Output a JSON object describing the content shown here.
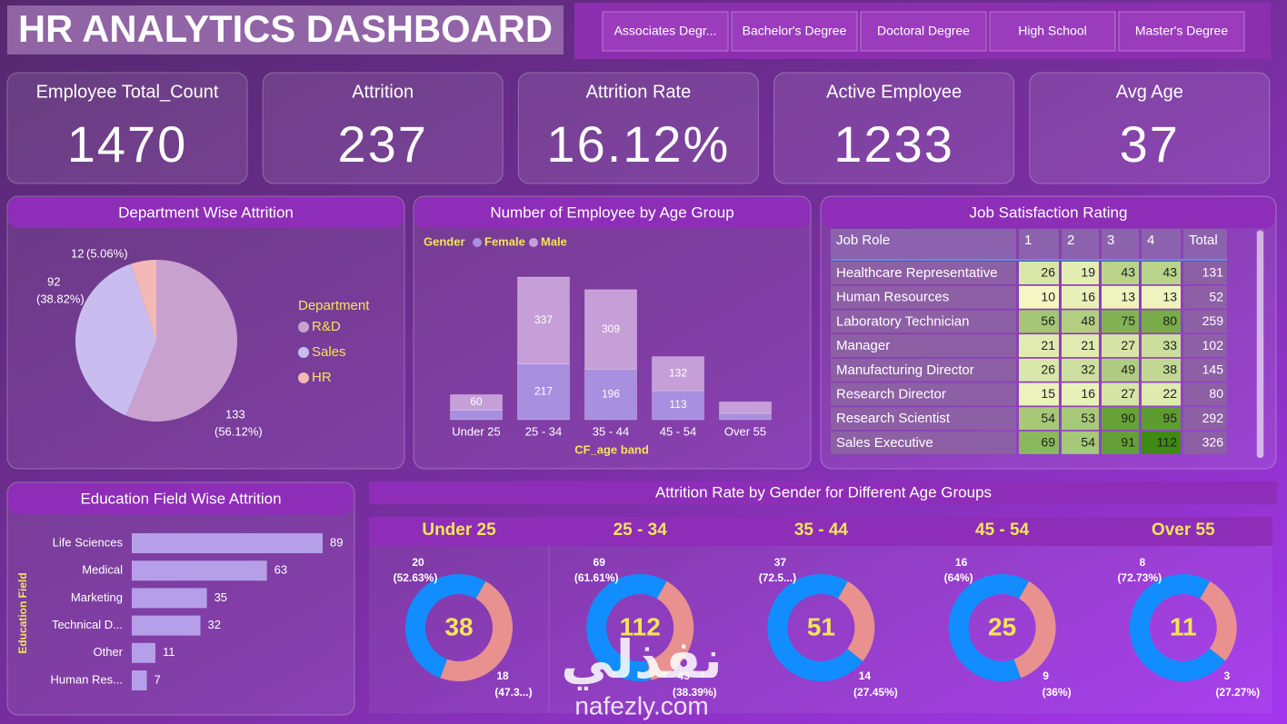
{
  "header": {
    "title": "HR ANALYTICS DASHBOARD",
    "filters": [
      "Associates Degr...",
      "Bachelor's Degree",
      "Doctoral Degree",
      "High School",
      "Master's Degree"
    ]
  },
  "kpis": [
    {
      "label": "Employee Total_Count",
      "value": 1470
    },
    {
      "label": "Attrition",
      "value": 237
    },
    {
      "label": "Attrition Rate",
      "value": 16.12,
      "value_label": "16.12%"
    },
    {
      "label": "Active Employee",
      "value": 1233
    },
    {
      "label": "Avg Age",
      "value": 37
    }
  ],
  "chart_data": [
    {
      "type": "pie",
      "title": "Department Wise Attrition",
      "legend_title": "Department",
      "legend": "right",
      "categories": [
        "R&D",
        "Sales",
        "HR"
      ],
      "values": [
        133,
        92,
        12
      ],
      "percent_labels": [
        "(56.12%)",
        "(38.82%)",
        "(5.06%)"
      ],
      "colors": [
        "#c9a1cf",
        "#c9bdf0",
        "#f2b9b6"
      ]
    },
    {
      "type": "stacked_bar",
      "title": "Number of Employee by Age Group",
      "legend_title": "Gender",
      "x_label": "CF_age band",
      "categories": [
        "Under 25",
        "25 - 34",
        "35 - 44",
        "45 - 54",
        "Over 55"
      ],
      "series": [
        {
          "name": "Female",
          "color": "#a98fe0",
          "values": [
            37,
            217,
            196,
            113,
            25
          ]
        },
        {
          "name": "Male",
          "color": "#c79fd8",
          "values": [
            60,
            337,
            309,
            132,
            44
          ]
        }
      ]
    },
    {
      "type": "hbar",
      "title": "Education Field Wise Attrition",
      "y_label": "Education Field",
      "categories": [
        "Life Sciences",
        "Medical",
        "Marketing",
        "Technical D...",
        "Other",
        "Human Res..."
      ],
      "values": [
        89,
        63,
        35,
        32,
        11,
        7
      ],
      "color": "#b59fe8"
    },
    {
      "type": "donut",
      "title": "Attrition Rate by Gender for Different Age Groups",
      "colors": [
        "#118dff",
        "#e8918f"
      ],
      "panels": [
        {
          "title": "Under 25",
          "total": 38,
          "values": [
            20,
            18
          ],
          "percent_labels": [
            "(52.63%)",
            "(47.3...)"
          ]
        },
        {
          "title": "25 - 34",
          "total": 112,
          "values": [
            69,
            43
          ],
          "percent_labels": [
            "(61.61%)",
            "(38.39%)"
          ]
        },
        {
          "title": "35 - 44",
          "total": 51,
          "values": [
            37,
            14
          ],
          "percent_labels": [
            "(72.5...)",
            "(27.45%)"
          ]
        },
        {
          "title": "45 - 54",
          "total": 25,
          "values": [
            16,
            9
          ],
          "percent_labels": [
            "(64%)",
            "(36%)"
          ]
        },
        {
          "title": "Over 55",
          "total": 11,
          "values": [
            8,
            3
          ],
          "percent_labels": [
            "(72.73%)",
            "(27.27%)"
          ]
        }
      ]
    }
  ],
  "table": {
    "title": "Job Satisfaction Rating",
    "columns": [
      "Job Role",
      "1",
      "2",
      "3",
      "4",
      "Total"
    ],
    "rows": [
      [
        "Healthcare Representative",
        26,
        19,
        43,
        43,
        131
      ],
      [
        "Human Resources",
        10,
        16,
        13,
        13,
        52
      ],
      [
        "Laboratory Technician",
        56,
        48,
        75,
        80,
        259
      ],
      [
        "Manager",
        21,
        21,
        27,
        33,
        102
      ],
      [
        "Manufacturing Director",
        26,
        32,
        49,
        38,
        145
      ],
      [
        "Research Director",
        15,
        16,
        27,
        22,
        80
      ],
      [
        "Research Scientist",
        54,
        53,
        90,
        95,
        292
      ],
      [
        "Sales Executive",
        69,
        54,
        91,
        112,
        326
      ]
    ]
  },
  "watermark": {
    "arabic": "نفذلي",
    "latin": "nafezly.com"
  }
}
